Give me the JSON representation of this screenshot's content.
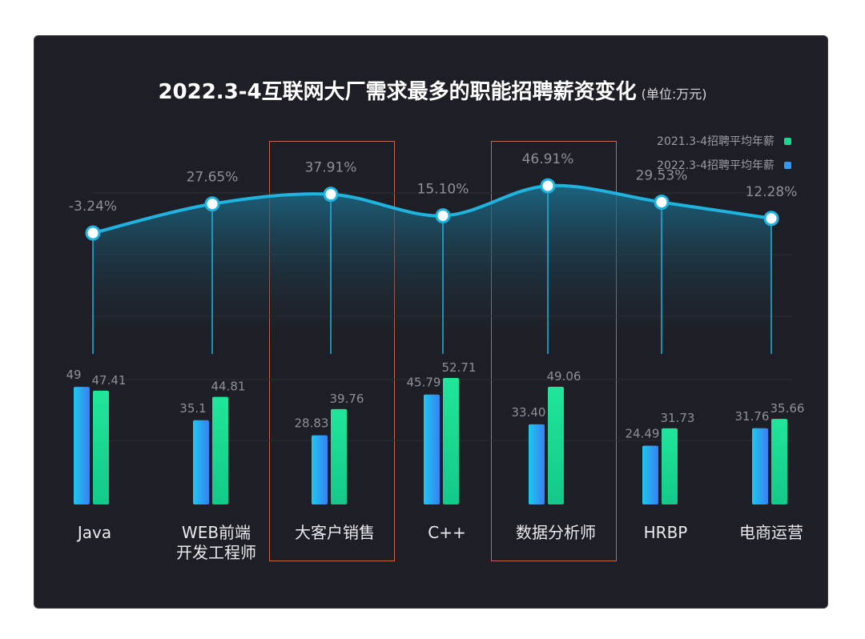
{
  "title": "2022.3-4互联网大厂需求最多的职能招聘薪资变化",
  "unit": "(单位:万元)",
  "legend": [
    {
      "label": "2021.3-4招聘平均年薪",
      "color": "#16d98e"
    },
    {
      "label": "2022.3-4招聘平均年薪",
      "color": "#2f9bf2"
    }
  ],
  "chart_data": {
    "type": "bar",
    "categories": [
      {
        "line1": "Java",
        "line2": ""
      },
      {
        "line1": "WEB前端",
        "line2": "开发工程师"
      },
      {
        "line1": "大客户销售",
        "line2": ""
      },
      {
        "line1": "C++",
        "line2": ""
      },
      {
        "line1": "数据分析师",
        "line2": ""
      },
      {
        "line1": "HRBP",
        "line2": ""
      },
      {
        "line1": "电商运营",
        "line2": ""
      }
    ],
    "series": [
      {
        "name": "2022.3-4招聘平均年薪",
        "values": [
          49,
          35.1,
          28.83,
          45.79,
          33.4,
          24.49,
          31.76
        ],
        "labels": [
          "49",
          "35.1",
          "28.83",
          "45.79",
          "33.40",
          "24.49",
          "31.76"
        ]
      },
      {
        "name": "2021.3-4招聘平均年薪",
        "values": [
          47.41,
          44.81,
          39.76,
          52.71,
          49.06,
          31.73,
          35.66
        ],
        "labels": [
          "47.41",
          "44.81",
          "39.76",
          "52.71",
          "49.06",
          "31.73",
          "35.66"
        ]
      }
    ],
    "change_pct": [
      -3.24,
      27.65,
      37.91,
      15.1,
      46.91,
      29.53,
      12.28
    ],
    "change_labels": [
      "-3.24%",
      "27.65%",
      "37.91%",
      "15.10%",
      "46.91%",
      "29.53%",
      "12.28%"
    ],
    "highlighted": [
      "大客户销售",
      "数据分析师"
    ],
    "colors": {
      "bar_2022_top": "#1ec8ee",
      "bar_2022_bottom": "#3a7ff5",
      "bar_2021_top": "#20e69a",
      "bar_2021_bottom": "#14c98a",
      "line": "#1fb4e0",
      "highlight_box": "#c7684e"
    }
  }
}
